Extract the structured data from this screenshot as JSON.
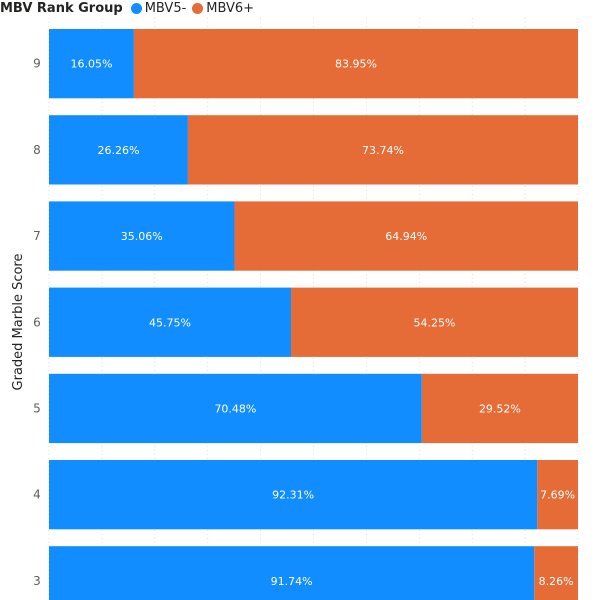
{
  "chart_data": {
    "type": "bar",
    "orientation": "horizontal",
    "stacked": "100%",
    "legend_title": "MBV Rank Group",
    "legend_position": "top-left",
    "ylabel": "Graded Marble Score",
    "xlabel": "",
    "categories": [
      "9",
      "8",
      "7",
      "6",
      "5",
      "4",
      "3"
    ],
    "series": [
      {
        "name": "MBV5-",
        "color": "#118DFF",
        "values": [
          16.05,
          26.26,
          35.06,
          45.75,
          70.48,
          92.31,
          91.74
        ],
        "labels": [
          "16.05%",
          "26.26%",
          "35.06%",
          "45.75%",
          "70.48%",
          "92.31%",
          "91.74%"
        ]
      },
      {
        "name": "MBV6+",
        "color": "#E66C37",
        "values": [
          83.95,
          73.74,
          64.94,
          54.25,
          29.52,
          7.69,
          8.26
        ],
        "labels": [
          "83.95%",
          "73.74%",
          "64.94%",
          "54.25%",
          "29.52%",
          "7.69%",
          "8.26%"
        ]
      }
    ],
    "xlim": [
      0,
      100
    ],
    "grid": true
  }
}
